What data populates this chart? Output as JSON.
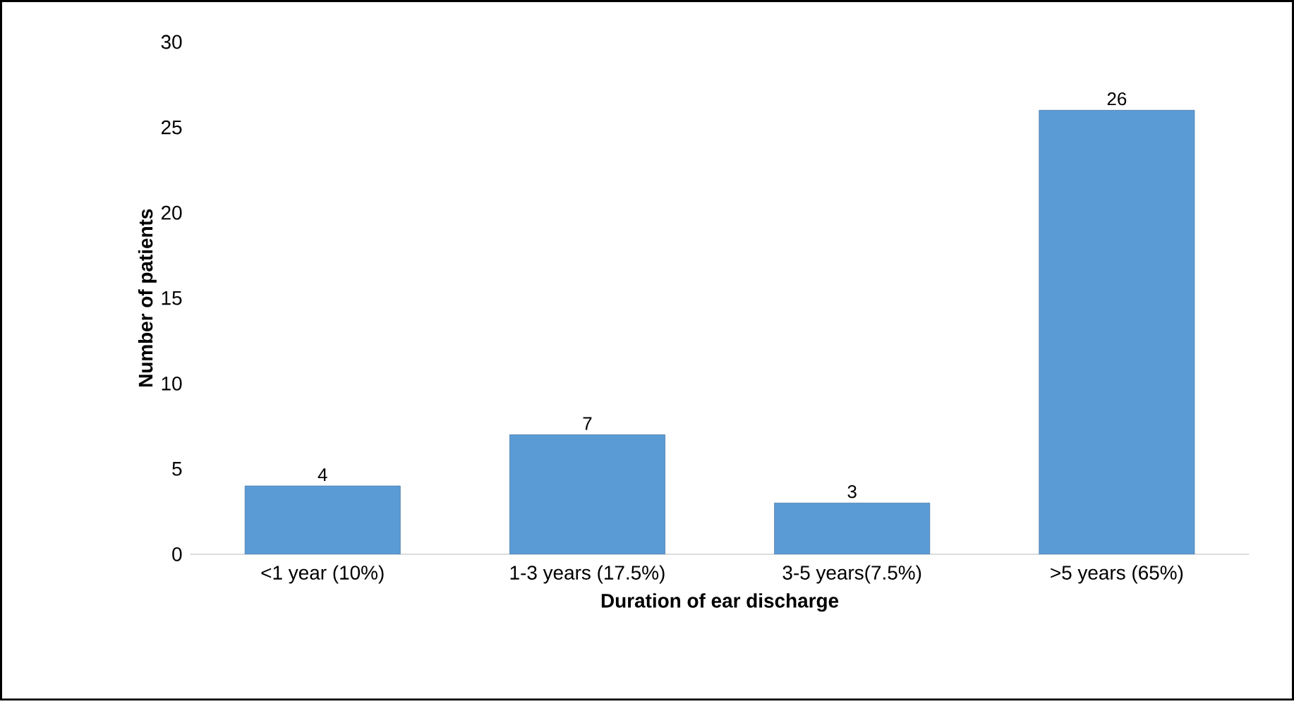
{
  "chart_data": {
    "type": "bar",
    "xlabel": "Duration of ear discharge",
    "ylabel": "Number of patients",
    "categories": [
      "<1 year  (10%)",
      "1-3 years (17.5%)",
      "3-5 years(7.5%)",
      ">5 years (65%)"
    ],
    "values": [
      4,
      7,
      3,
      26
    ],
    "color": "#5b9bd5",
    "ylim": [
      0,
      30
    ],
    "yticks": [
      0,
      5,
      10,
      15,
      20,
      25,
      30
    ],
    "data_labels": true
  }
}
